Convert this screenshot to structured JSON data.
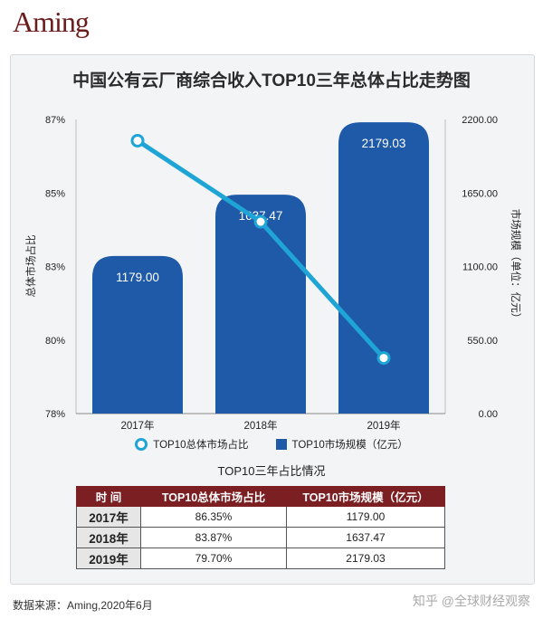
{
  "brand": "Aming",
  "title": "中国公有云厂商综合收入TOP10三年总体占比走势图",
  "chart_data": {
    "type": "bar+line",
    "title": "中国公有云厂商综合收入TOP10三年总体占比走势图",
    "categories": [
      "2017年",
      "2018年",
      "2019年"
    ],
    "left_axis": {
      "label": "总体市场占比",
      "ticks": [
        "78%",
        "80%",
        "83%",
        "85%",
        "87%"
      ],
      "ylim": [
        78,
        87
      ]
    },
    "right_axis": {
      "label": "市场规模（单位：亿元）",
      "ticks": [
        "0.00",
        "550.00",
        "1100.00",
        "1650.00",
        "2200.00"
      ],
      "ylim": [
        0,
        2200
      ]
    },
    "series": [
      {
        "name": "TOP10总体市场占比",
        "type": "line",
        "axis": "left",
        "values": [
          86.35,
          83.87,
          79.7
        ],
        "color": "#1ea5d6"
      },
      {
        "name": "TOP10市场规模（亿元）",
        "type": "bar",
        "axis": "right",
        "values": [
          1179.0,
          1637.47,
          2179.03
        ],
        "labels": [
          "1179.00",
          "1637.47",
          "2179.03"
        ],
        "color": "#1f5aa8"
      }
    ]
  },
  "legend": {
    "line": "TOP10总体市场占比",
    "bar": "TOP10市场规模（亿元）"
  },
  "table": {
    "title": "TOP10三年占比情况",
    "headers": [
      "时 间",
      "TOP10总体市场占比",
      "TOP10市场规模（亿元）"
    ],
    "rows": [
      [
        "2017年",
        "86.35%",
        "1179.00"
      ],
      [
        "2018年",
        "83.87%",
        "1637.47"
      ],
      [
        "2019年",
        "79.70%",
        "2179.03"
      ]
    ]
  },
  "source": "数据来源：Aming,2020年6月",
  "watermark": "知乎 @全球财经观察",
  "colors": {
    "bar": "#1f5aa8",
    "line": "#1ea5d6",
    "header": "#7b1f22",
    "card": "#f3f4f6"
  }
}
